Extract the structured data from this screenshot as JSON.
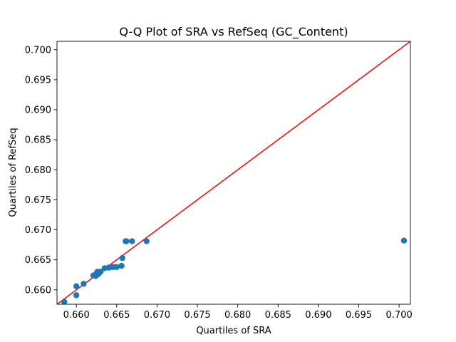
{
  "chart_data": {
    "type": "scatter",
    "title": "Q-Q Plot of SRA vs RefSeq (GC_Content)",
    "xlabel": "Quartiles of SRA",
    "ylabel": "Quartiles of RefSeq",
    "xlim": [
      0.6576,
      0.7014
    ],
    "ylim": [
      0.6576,
      0.7014
    ],
    "grid": false,
    "legend": "none",
    "x_ticks": [
      "0.660",
      "0.665",
      "0.670",
      "0.675",
      "0.680",
      "0.685",
      "0.690",
      "0.695",
      "0.700"
    ],
    "y_ticks": [
      "0.660",
      "0.665",
      "0.670",
      "0.675",
      "0.680",
      "0.685",
      "0.690",
      "0.695",
      "0.700"
    ],
    "x_tick_values": [
      0.66,
      0.665,
      0.67,
      0.675,
      0.68,
      0.685,
      0.69,
      0.695,
      0.7
    ],
    "y_tick_values": [
      0.66,
      0.665,
      0.67,
      0.675,
      0.68,
      0.685,
      0.69,
      0.695,
      0.7
    ],
    "reference_line": {
      "color": "#ff0000",
      "points": [
        [
          0.6576,
          0.6576
        ],
        [
          0.7014,
          0.7014
        ]
      ]
    },
    "series": [
      {
        "color": "#1f77b4",
        "x": [
          0.6585,
          0.66,
          0.66,
          0.6609,
          0.6621,
          0.6624,
          0.6625,
          0.6626,
          0.6627,
          0.663,
          0.6635,
          0.664,
          0.6643,
          0.6646,
          0.665,
          0.6656,
          0.6657,
          0.6661,
          0.6662,
          0.6669,
          0.6687,
          0.7006
        ],
        "y": [
          0.658,
          0.6591,
          0.6606,
          0.661,
          0.6624,
          0.6623,
          0.6627,
          0.663,
          0.6626,
          0.663,
          0.6636,
          0.6637,
          0.6638,
          0.6638,
          0.6638,
          0.664,
          0.6653,
          0.6681,
          0.6681,
          0.6681,
          0.6681,
          0.6682
        ]
      }
    ]
  }
}
